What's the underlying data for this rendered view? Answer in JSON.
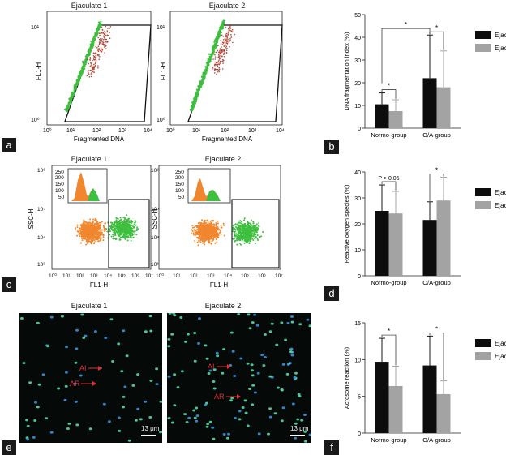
{
  "panels": {
    "a": {
      "letter": "a",
      "titles": [
        "Ejaculate 1",
        "Ejaculate 2"
      ],
      "xlabel": "Fragmented DNA",
      "ylabel": "FL1-H",
      "xticks": [
        "10⁰",
        "10¹",
        "10²",
        "10³",
        "10⁴"
      ],
      "yticks": [
        "10⁰",
        "10¹"
      ]
    },
    "c": {
      "letter": "c",
      "titles": [
        "Ejaculate 1",
        "Ejaculate 2"
      ],
      "xlabel": "FL1-H",
      "ylabel": "SSC-H",
      "xticks": [
        "10⁰",
        "10¹",
        "10²",
        "10³",
        "10⁴",
        "10⁵",
        "10⁶",
        "10⁷"
      ],
      "yticks": [
        "10⁶",
        "10⁵",
        "10⁴",
        "10³"
      ],
      "inset_ticks": [
        "250",
        "200",
        "150",
        "100",
        "50"
      ]
    },
    "e": {
      "letter": "e",
      "titles": [
        "Ejaculate 1",
        "Ejaculate 2"
      ],
      "labels_left": [
        "AI",
        "AR"
      ],
      "labels_right": [
        "AI",
        "AR"
      ],
      "scale": "13 μm"
    },
    "b": {
      "letter": "b"
    },
    "d": {
      "letter": "d"
    },
    "f": {
      "letter": "f"
    }
  },
  "legend_names": [
    "Ejacu",
    "Ejacu"
  ],
  "colors": {
    "ejaculate1": "#0d0d0d",
    "ejaculate2": "#a3a3a3",
    "green_dots": "#3fbf3f",
    "red_dots": "#b5493a",
    "orange_dots": "#f0862e"
  },
  "chart_data": [
    {
      "id": "b",
      "type": "bar",
      "categories": [
        "Normo-group",
        "O/A-group"
      ],
      "series": [
        {
          "name": "Ejacu",
          "values": [
            10.5,
            22
          ],
          "errors": [
            5,
            19
          ]
        },
        {
          "name": "Ejacu",
          "values": [
            7.5,
            18
          ],
          "errors": [
            5,
            16
          ]
        }
      ],
      "ylabel": "DNA fragmentation index (%)",
      "ylim": [
        0,
        50
      ],
      "yticks": [
        0,
        10,
        20,
        30,
        40,
        50
      ],
      "annotations": [
        "*",
        "*",
        "*"
      ]
    },
    {
      "id": "d",
      "type": "bar",
      "categories": [
        "Normo-group",
        "O/A-group"
      ],
      "series": [
        {
          "name": "Ejacu",
          "values": [
            25,
            21.5
          ],
          "errors": [
            10,
            7
          ]
        },
        {
          "name": "Ejacu",
          "values": [
            24,
            29
          ],
          "errors": [
            8.5,
            9
          ]
        }
      ],
      "ylabel": "Reactive oxygen species (%)",
      "ylim": [
        0,
        40
      ],
      "yticks": [
        0,
        10,
        20,
        30,
        40
      ],
      "annotations": [
        "P > 0.05",
        "*"
      ]
    },
    {
      "id": "f",
      "type": "bar",
      "categories": [
        "Normo-group",
        "O/A-group"
      ],
      "series": [
        {
          "name": "Ejacu",
          "values": [
            9.7,
            9.2
          ],
          "errors": [
            3.2,
            4
          ]
        },
        {
          "name": "Ejacu",
          "values": [
            6.4,
            5.3
          ],
          "errors": [
            2.7,
            1.8
          ]
        }
      ],
      "ylabel": "Acrosome reaction (%)",
      "ylim": [
        0,
        15
      ],
      "yticks": [
        0,
        5,
        10,
        15
      ],
      "annotations": [
        "*",
        "*"
      ]
    }
  ]
}
